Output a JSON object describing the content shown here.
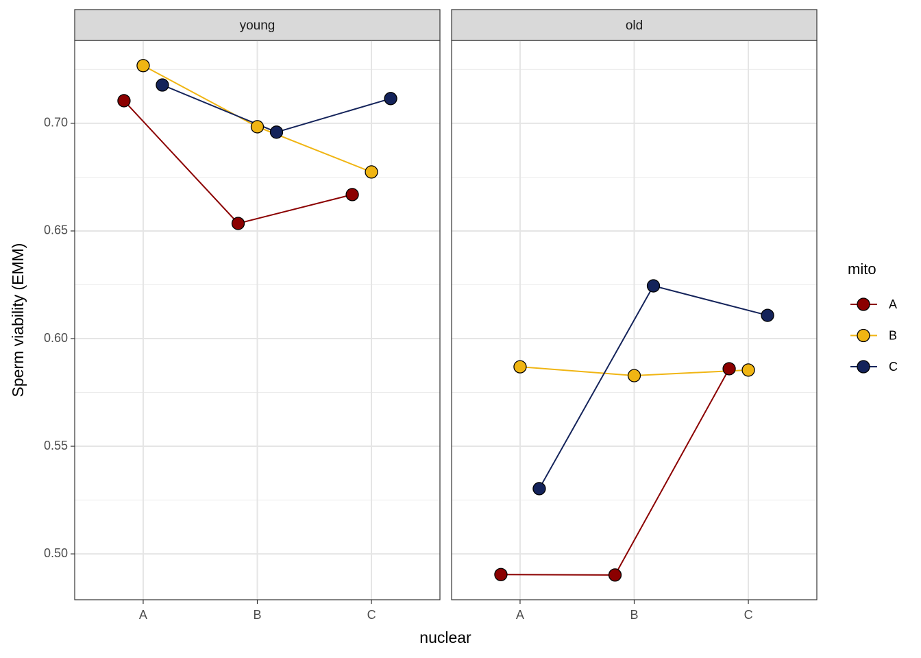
{
  "chart_data": {
    "type": "line",
    "xlabel": "nuclear",
    "ylabel": "Sperm viability (EMM)",
    "legend_title": "mito",
    "legend_position": "right",
    "grid": true,
    "categories": [
      "A",
      "B",
      "C"
    ],
    "ylim": [
      0.4787,
      0.7385
    ],
    "yticks": [
      {
        "value": 0.5,
        "label": "0.50"
      },
      0.55,
      {
        "value": 0.6,
        "label": "0.60"
      },
      0.65,
      {
        "value": 0.7,
        "label": "0.70"
      }
    ],
    "minor_yticks": [
      0.525,
      0.575,
      0.625,
      0.675,
      0.725
    ],
    "series": [
      {
        "name": "A",
        "color": "#8b0000"
      },
      {
        "name": "B",
        "color": "#f0b513"
      },
      {
        "name": "C",
        "color": "#14235a"
      }
    ],
    "facets": [
      {
        "title": "young",
        "series": [
          {
            "values": [
              0.7105,
              0.6535,
              0.6669
            ]
          },
          {
            "values": [
              0.7268,
              0.6984,
              0.6774
            ]
          },
          {
            "values": [
              0.7178,
              0.6959,
              0.7115
            ]
          }
        ]
      },
      {
        "title": "old",
        "series": [
          {
            "values": [
              0.4904,
              0.4902,
              0.586
            ]
          },
          {
            "values": [
              0.5869,
              0.5828,
              0.5854
            ]
          },
          {
            "values": [
              0.5303,
              0.6245,
              0.6108
            ]
          }
        ]
      }
    ]
  }
}
